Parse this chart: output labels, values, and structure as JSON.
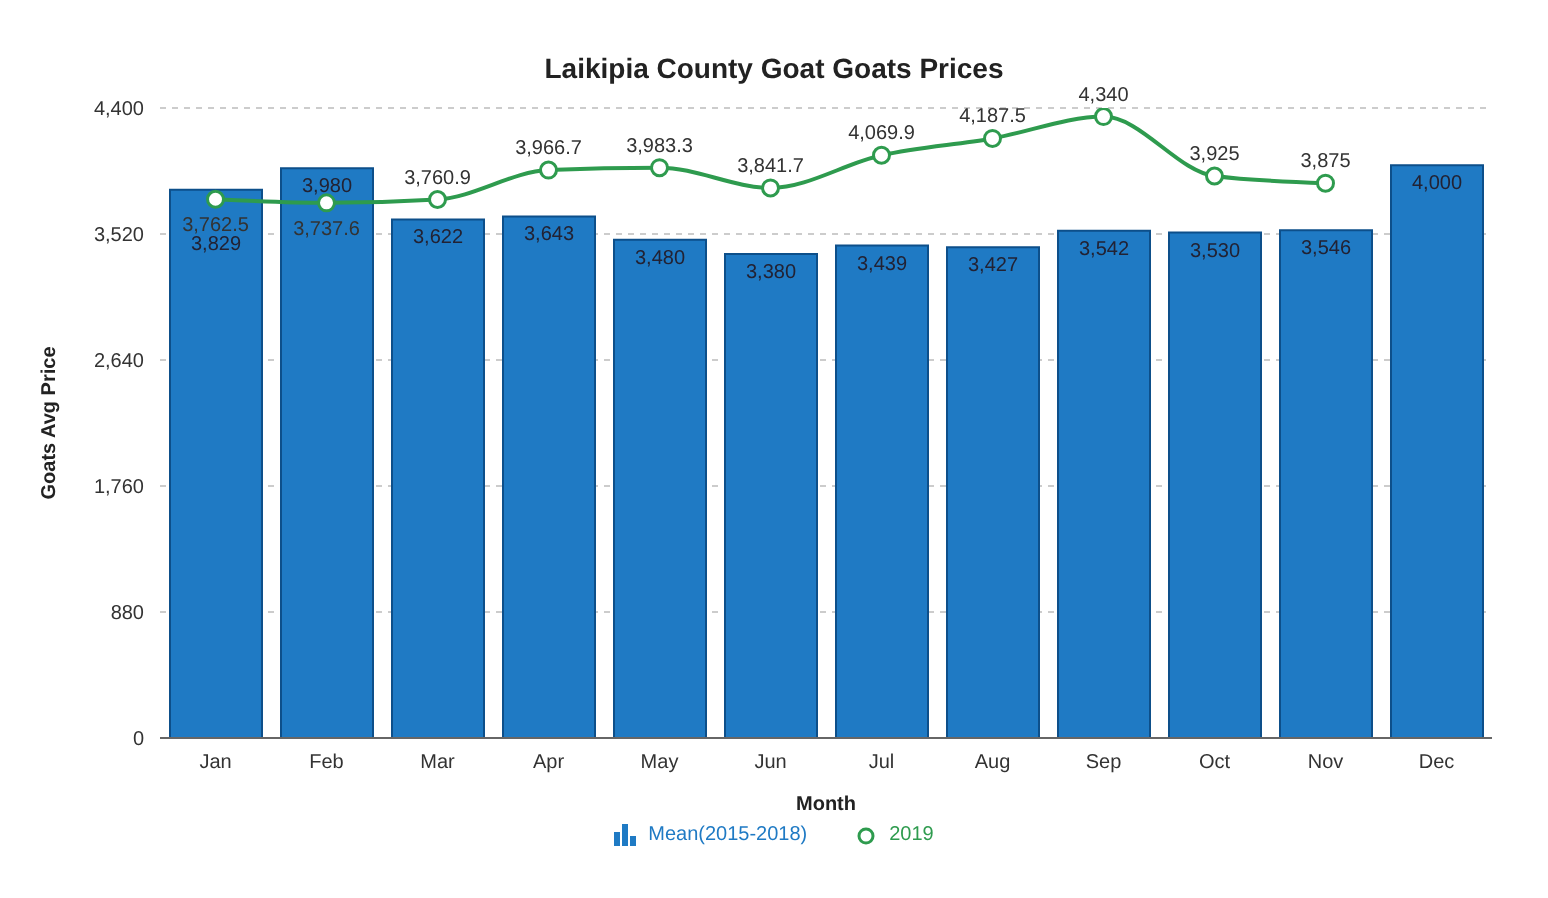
{
  "chart_data": {
    "type": "bar",
    "title": "Laikipia County Goat Goats Prices",
    "xlabel": "Month",
    "ylabel": "Goats Avg Price",
    "categories": [
      "Jan",
      "Feb",
      "Mar",
      "Apr",
      "May",
      "Jun",
      "Jul",
      "Aug",
      "Sep",
      "Oct",
      "Nov",
      "Dec"
    ],
    "series": [
      {
        "name": "Mean(2015-2018)",
        "color": "#1f7ac4",
        "values": [
          3829,
          3980,
          3622,
          3643,
          3480,
          3380,
          3439,
          3427,
          3542,
          3530,
          3546,
          4000
        ],
        "value_labels": [
          "3,829",
          "3,980",
          "3,622",
          "3,643",
          "3,480",
          "3,380",
          "3,439",
          "3,427",
          "3,542",
          "3,530",
          "3,546",
          "4,000"
        ]
      },
      {
        "name": "2019",
        "type": "line",
        "color": "#2e9b4e",
        "marker": "circle",
        "values": [
          3762.5,
          3737.6,
          3760.9,
          3966.7,
          3983.3,
          3841.7,
          4069.9,
          4187.5,
          4340,
          3925,
          3875,
          null
        ],
        "value_labels": [
          "3,762.5",
          "3,737.6",
          "3,760.9",
          "3,966.7",
          "3,983.3",
          "3,841.7",
          "4,069.9",
          "4,187.5",
          "4,340",
          "3,925",
          "3,875",
          null
        ]
      }
    ],
    "ylim": [
      0,
      4400
    ],
    "yticks": [
      {
        "value": 0,
        "label": "0"
      },
      {
        "value": 880,
        "label": "880"
      },
      {
        "value": 1760,
        "label": "1,760"
      },
      {
        "value": 2640,
        "label": "2,640"
      },
      {
        "value": 3520,
        "label": "3,520"
      },
      {
        "value": 4400,
        "label": "4,400"
      }
    ],
    "grid": "y",
    "legend": "bottom"
  }
}
